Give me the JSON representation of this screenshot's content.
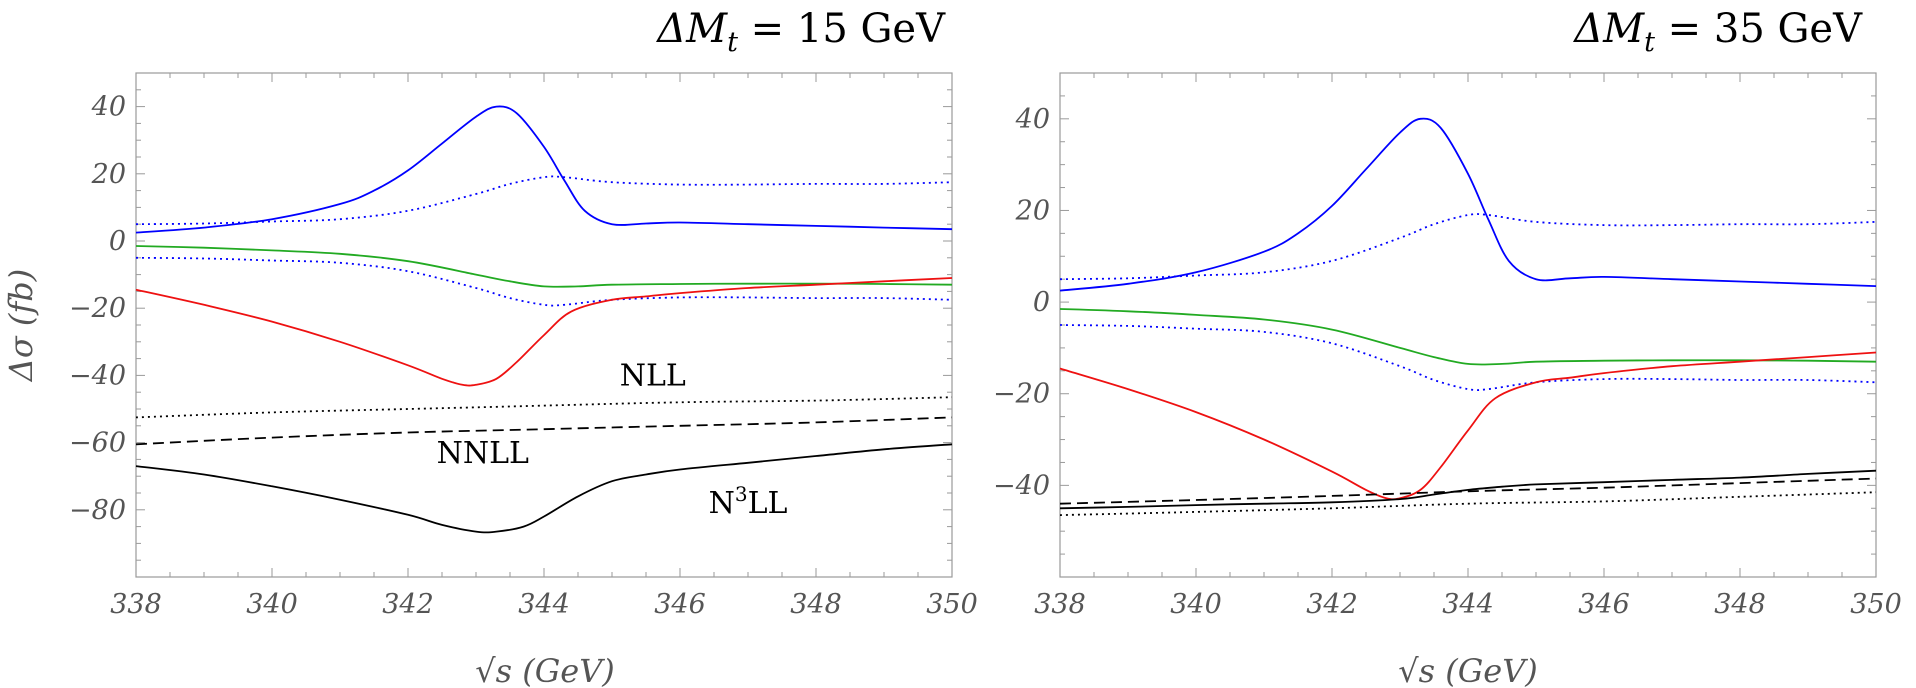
{
  "chart_data": [
    {
      "type": "line",
      "title": "ΔMt = 15 GeV",
      "title_parts": {
        "symbol": "ΔM",
        "subscript": "t",
        "rest": " = 15 GeV"
      },
      "xlabel": "√s  (GeV)",
      "ylabel": "Δσ (fb)",
      "xlim": [
        338,
        350
      ],
      "ylim": [
        -100,
        50
      ],
      "xticks": [
        "338",
        "340",
        "342",
        "344",
        "346",
        "348",
        "350"
      ],
      "yticks": [
        "40",
        "20",
        "0",
        "−20",
        "−40",
        "−60",
        "−80"
      ],
      "grid": false,
      "annotations": [
        {
          "text": "NLL",
          "x": 345.6,
          "y": -43
        },
        {
          "text": "NNLL",
          "x": 343.1,
          "y": -66
        },
        {
          "text": "N³LL",
          "x": 347.0,
          "y": -81
        }
      ],
      "series": [
        {
          "color": "#0000ff",
          "style": "solid",
          "x": [
            338,
            339,
            340,
            341,
            341.5,
            342,
            342.5,
            343,
            343.3,
            343.6,
            344,
            344.3,
            344.6,
            345,
            345.5,
            346,
            347,
            348,
            349,
            350
          ],
          "y": [
            2.5,
            4,
            6.5,
            11,
            15,
            21,
            29,
            37,
            40,
            38,
            28,
            18,
            9,
            5,
            5.2,
            5.5,
            5,
            4.5,
            4,
            3.5
          ]
        },
        {
          "color": "#0000ff",
          "style": "dotted",
          "x": [
            338,
            339,
            340,
            341,
            342,
            343,
            343.5,
            344,
            344.3,
            345,
            346,
            347,
            348,
            349,
            350
          ],
          "y": [
            5,
            5.2,
            5.8,
            6.5,
            9,
            14,
            17,
            19,
            19,
            17.5,
            16.8,
            16.8,
            17,
            17,
            17.5
          ]
        },
        {
          "color": "#0000ff",
          "style": "dotted",
          "x": [
            338,
            339,
            340,
            341,
            342,
            343,
            343.5,
            344,
            344.3,
            345,
            346,
            347,
            348,
            349,
            350
          ],
          "y": [
            -5,
            -5.2,
            -5.8,
            -6.5,
            -9,
            -14,
            -17,
            -19,
            -19,
            -17.5,
            -16.8,
            -16.8,
            -17,
            -17,
            -17.5
          ]
        },
        {
          "color": "#22aa22",
          "style": "solid",
          "x": [
            338,
            339,
            340,
            341,
            342,
            343,
            343.5,
            344,
            344.5,
            345,
            346,
            347,
            348,
            349,
            350
          ],
          "y": [
            -1.5,
            -2,
            -2.8,
            -3.8,
            -6,
            -10,
            -12,
            -13.5,
            -13.5,
            -13,
            -12.8,
            -12.7,
            -12.7,
            -12.8,
            -13
          ]
        },
        {
          "color": "#ee1111",
          "style": "solid",
          "x": [
            338,
            339,
            340,
            341,
            342,
            342.5,
            342.8,
            343,
            343.3,
            343.6,
            344,
            344.4,
            345,
            345.5,
            346,
            347,
            348,
            349,
            350
          ],
          "y": [
            -14.5,
            -19,
            -24,
            -30,
            -37,
            -41,
            -42.8,
            -42.8,
            -41,
            -36,
            -28,
            -21,
            -17.5,
            -16.5,
            -15.5,
            -14,
            -13,
            -12,
            -11
          ]
        },
        {
          "color": "#000000",
          "style": "dotted",
          "x": [
            338,
            340,
            342,
            344,
            346,
            348,
            350
          ],
          "y": [
            -52.5,
            -51,
            -50,
            -49,
            -48,
            -47.5,
            -46.5
          ]
        },
        {
          "color": "#000000",
          "style": "dashed",
          "x": [
            338,
            340,
            342,
            344,
            346,
            348,
            350
          ],
          "y": [
            -60.5,
            -58.5,
            -57,
            -56,
            -55,
            -54,
            -52.5
          ]
        },
        {
          "color": "#000000",
          "style": "solid",
          "x": [
            338,
            339,
            340,
            341,
            342,
            342.5,
            343,
            343.3,
            343.7,
            344,
            344.5,
            345,
            345.5,
            346,
            347,
            348,
            349,
            350
          ],
          "y": [
            -67,
            -69.5,
            -73,
            -77,
            -81.5,
            -84.5,
            -86.5,
            -86.5,
            -85,
            -82,
            -76,
            -71.5,
            -69.5,
            -68,
            -66,
            -64,
            -62,
            -60.5
          ]
        }
      ]
    },
    {
      "type": "line",
      "title": "ΔMt = 35 GeV",
      "title_parts": {
        "symbol": "ΔM",
        "subscript": "t",
        "rest": " = 35 GeV"
      },
      "xlabel": "√s  (GeV)",
      "ylabel": "",
      "xlim": [
        338,
        350
      ],
      "ylim": [
        -60,
        50
      ],
      "xticks": [
        "338",
        "340",
        "342",
        "344",
        "346",
        "348",
        "350"
      ],
      "yticks": [
        "40",
        "20",
        "0",
        "−20",
        "−40"
      ],
      "grid": false,
      "annotations": [],
      "series": [
        {
          "color": "#0000ff",
          "style": "solid",
          "x": [
            338,
            339,
            340,
            341,
            341.5,
            342,
            342.5,
            343,
            343.3,
            343.6,
            344,
            344.3,
            344.6,
            345,
            345.5,
            346,
            347,
            348,
            349,
            350
          ],
          "y": [
            2.5,
            4,
            6.5,
            11,
            15,
            21,
            29,
            37,
            40,
            38,
            28,
            18,
            9,
            5,
            5.2,
            5.5,
            5,
            4.5,
            4,
            3.5
          ]
        },
        {
          "color": "#0000ff",
          "style": "dotted",
          "x": [
            338,
            339,
            340,
            341,
            342,
            343,
            343.5,
            344,
            344.3,
            345,
            346,
            347,
            348,
            349,
            350
          ],
          "y": [
            5,
            5.2,
            5.8,
            6.5,
            9,
            14,
            17,
            19,
            19,
            17.5,
            16.8,
            16.8,
            17,
            17,
            17.5
          ]
        },
        {
          "color": "#0000ff",
          "style": "dotted",
          "x": [
            338,
            339,
            340,
            341,
            342,
            343,
            343.5,
            344,
            344.3,
            345,
            346,
            347,
            348,
            349,
            350
          ],
          "y": [
            -5,
            -5.2,
            -5.8,
            -6.5,
            -9,
            -14,
            -17,
            -19,
            -19,
            -17.5,
            -16.8,
            -16.8,
            -17,
            -17,
            -17.5
          ]
        },
        {
          "color": "#22aa22",
          "style": "solid",
          "x": [
            338,
            339,
            340,
            341,
            342,
            343,
            343.5,
            344,
            344.5,
            345,
            346,
            347,
            348,
            349,
            350
          ],
          "y": [
            -1.5,
            -2,
            -2.8,
            -3.8,
            -6,
            -10,
            -12,
            -13.5,
            -13.5,
            -13,
            -12.8,
            -12.7,
            -12.7,
            -12.8,
            -13
          ]
        },
        {
          "color": "#ee1111",
          "style": "solid",
          "x": [
            338,
            339,
            340,
            341,
            342,
            342.5,
            342.8,
            343,
            343.3,
            343.6,
            344,
            344.4,
            345,
            345.5,
            346,
            347,
            348,
            349,
            350
          ],
          "y": [
            -14.5,
            -19,
            -24,
            -30,
            -37,
            -41,
            -42.8,
            -42.8,
            -41,
            -36,
            -28,
            -21,
            -17.5,
            -16.5,
            -15.5,
            -14,
            -13,
            -12,
            -11
          ]
        },
        {
          "color": "#000000",
          "style": "dotted",
          "x": [
            338,
            340,
            342,
            344,
            346,
            348,
            350
          ],
          "y": [
            -46.5,
            -45.8,
            -45,
            -44,
            -43.5,
            -42.5,
            -41.5
          ]
        },
        {
          "color": "#000000",
          "style": "dashed",
          "x": [
            338,
            340,
            342,
            344,
            346,
            348,
            350
          ],
          "y": [
            -44,
            -43.2,
            -42.3,
            -41.3,
            -40.5,
            -39.5,
            -38.5
          ]
        },
        {
          "color": "#000000",
          "style": "solid",
          "x": [
            338,
            339,
            340,
            341,
            342,
            343,
            343.5,
            344,
            344.5,
            345,
            346,
            347,
            348,
            349,
            350
          ],
          "y": [
            -45,
            -44.7,
            -44.3,
            -44,
            -43.7,
            -43,
            -42,
            -41,
            -40.3,
            -39.8,
            -39.3,
            -38.8,
            -38.3,
            -37.5,
            -36.8
          ]
        }
      ]
    }
  ]
}
